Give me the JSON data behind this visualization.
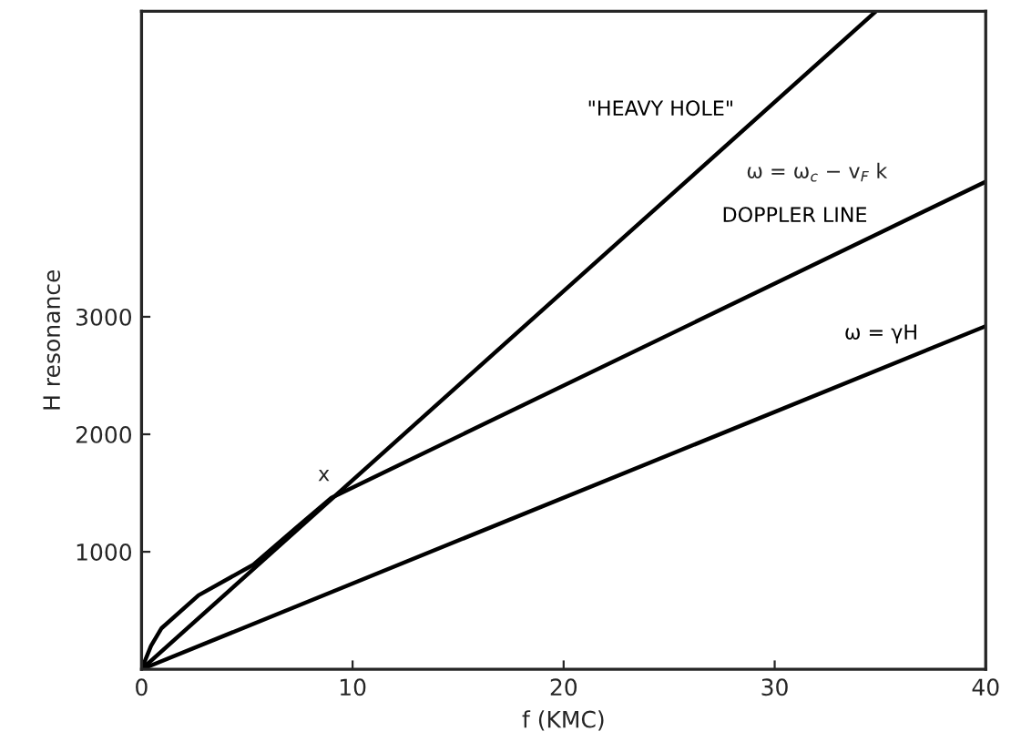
{
  "chart_data": {
    "type": "line",
    "xlabel": "f (KMC)",
    "ylabel": "H resonance",
    "xlim": [
      0,
      40
    ],
    "ylim": [
      0,
      5600
    ],
    "xticks": [
      0,
      10,
      20,
      30,
      40
    ],
    "yticks": [
      1000,
      2000,
      3000
    ],
    "grid": false,
    "legend": false,
    "marker": "none",
    "line_style": "solid",
    "series": [
      {
        "name": "\"HEAVY HOLE\"",
        "color": "#000000",
        "x": [
          0,
          34.8
        ],
        "values": [
          0,
          5600
        ]
      },
      {
        "name": "DOPPLER LINE",
        "color": "#000000",
        "x": [
          0,
          0.45,
          0.95,
          2.7,
          5.3,
          7.3,
          9.0,
          40
        ],
        "values": [
          0,
          200,
          350,
          630,
          890,
          1200,
          1460,
          4150
        ]
      },
      {
        "name": "ω = γH",
        "color": "#000000",
        "x": [
          0,
          40
        ],
        "values": [
          0,
          2920
        ]
      }
    ],
    "annotations": [
      "ω = ω$_{c}$ − v$_{F}$ k",
      {
        "text": "x",
        "x": 9.0,
        "y": 1460
      }
    ]
  }
}
